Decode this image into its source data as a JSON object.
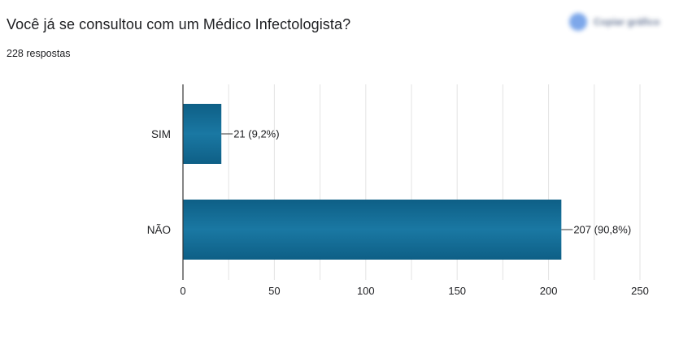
{
  "form": {
    "question_title": "Você já se consultou com um Médico Infectologista?",
    "response_count": "228 respostas",
    "copy_chart_label": "Copiar gráfico",
    "copy_icon": "copy-icon"
  },
  "colors": {
    "bar": "#1a78a3",
    "bar_dark": "#0e5f86",
    "grid": "#e3e3e3",
    "axis": "#333333"
  },
  "chart_data": {
    "type": "bar",
    "orientation": "horizontal",
    "title": "Você já se consultou com um Médico Infectologista?",
    "categories": [
      "SIM",
      "NÃO"
    ],
    "values": [
      21,
      207
    ],
    "data_labels": [
      "21 (9,2%)",
      "207 (90,8%)"
    ],
    "xlim": [
      0,
      250
    ],
    "xticks": [
      0,
      50,
      100,
      150,
      200,
      250
    ],
    "xtick_labels": [
      "0",
      "50",
      "100",
      "150",
      "200",
      "250"
    ],
    "grid": true
  }
}
